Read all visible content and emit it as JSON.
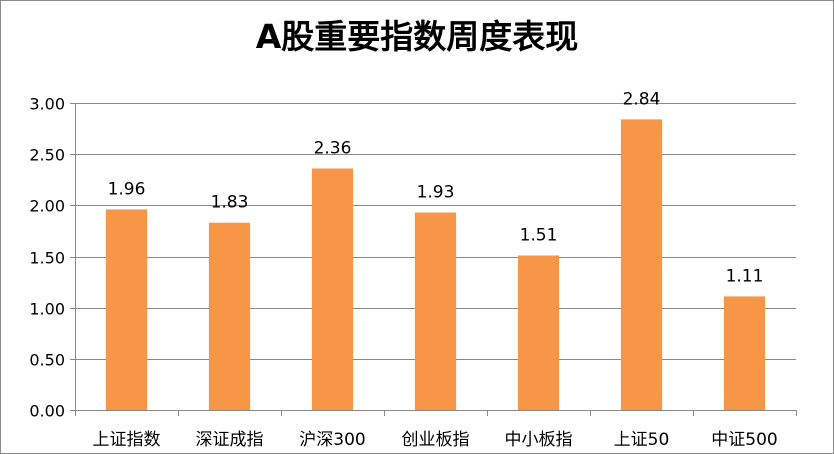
{
  "chart_data": {
    "type": "bar",
    "title": "A股重要指数周度表现",
    "categories": [
      "上证指数",
      "深证成指",
      "沪深300",
      "创业板指",
      "中小板指",
      "上证50",
      "中证500"
    ],
    "values": [
      1.96,
      1.83,
      2.36,
      1.93,
      1.51,
      2.84,
      1.11
    ],
    "data_labels": [
      "1.96",
      "1.83",
      "2.36",
      "1.93",
      "1.51",
      "2.84",
      "1.11"
    ],
    "ylim": [
      0,
      3
    ],
    "yticks": [
      0,
      0.5,
      1.0,
      1.5,
      2.0,
      2.5,
      3.0
    ],
    "ytick_labels": [
      "0.00",
      "0.50",
      "1.00",
      "1.50",
      "2.00",
      "2.50",
      "3.00"
    ],
    "xlabel": "",
    "ylabel": "",
    "grid": true,
    "legend": "none",
    "colors": {
      "bar": "#f79646",
      "grid": "#898989",
      "axis": "#898989"
    }
  }
}
